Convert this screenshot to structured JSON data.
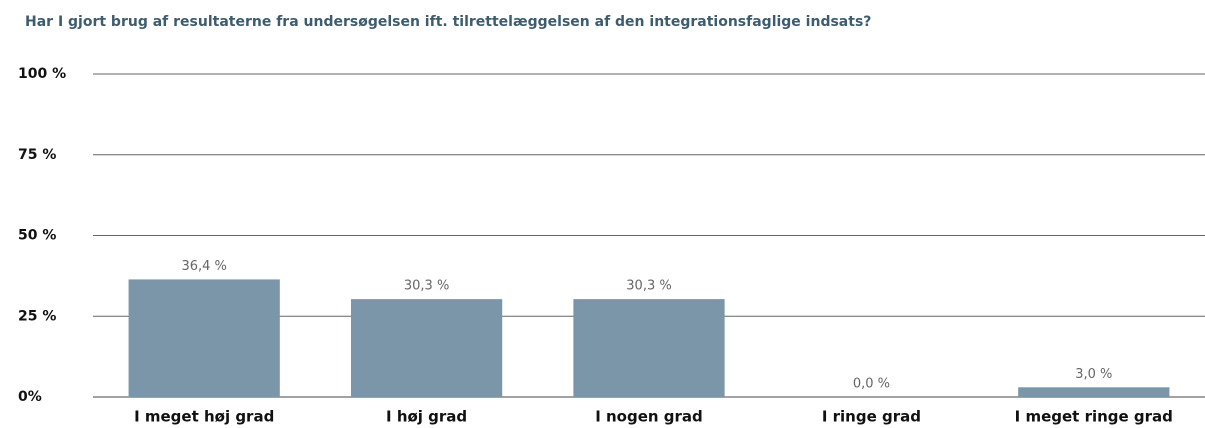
{
  "chart_data": {
    "type": "bar",
    "title": "Har I gjort brug af resultaterne fra undersøgelsen ift. tilrettelæggelsen af den integrationsfaglige indsats?",
    "categories": [
      "I meget høj grad",
      "I høj grad",
      "I nogen grad",
      "I ringe grad",
      "I meget ringe grad"
    ],
    "values": [
      36.4,
      30.3,
      30.3,
      0.0,
      3.0
    ],
    "value_labels": [
      "36,4 %",
      "30,3 %",
      "30,3 %",
      "0,0 %",
      "3,0 %"
    ],
    "color": "#7a96a8",
    "ylim": [
      0,
      100
    ],
    "yticks": [
      {
        "value": 0,
        "label": "0%"
      },
      {
        "value": 25,
        "label": "25 %"
      },
      {
        "value": 50,
        "label": "50 %"
      },
      {
        "value": 75,
        "label": "75 %"
      },
      {
        "value": 100,
        "label": "100 %"
      }
    ],
    "grid": true
  }
}
